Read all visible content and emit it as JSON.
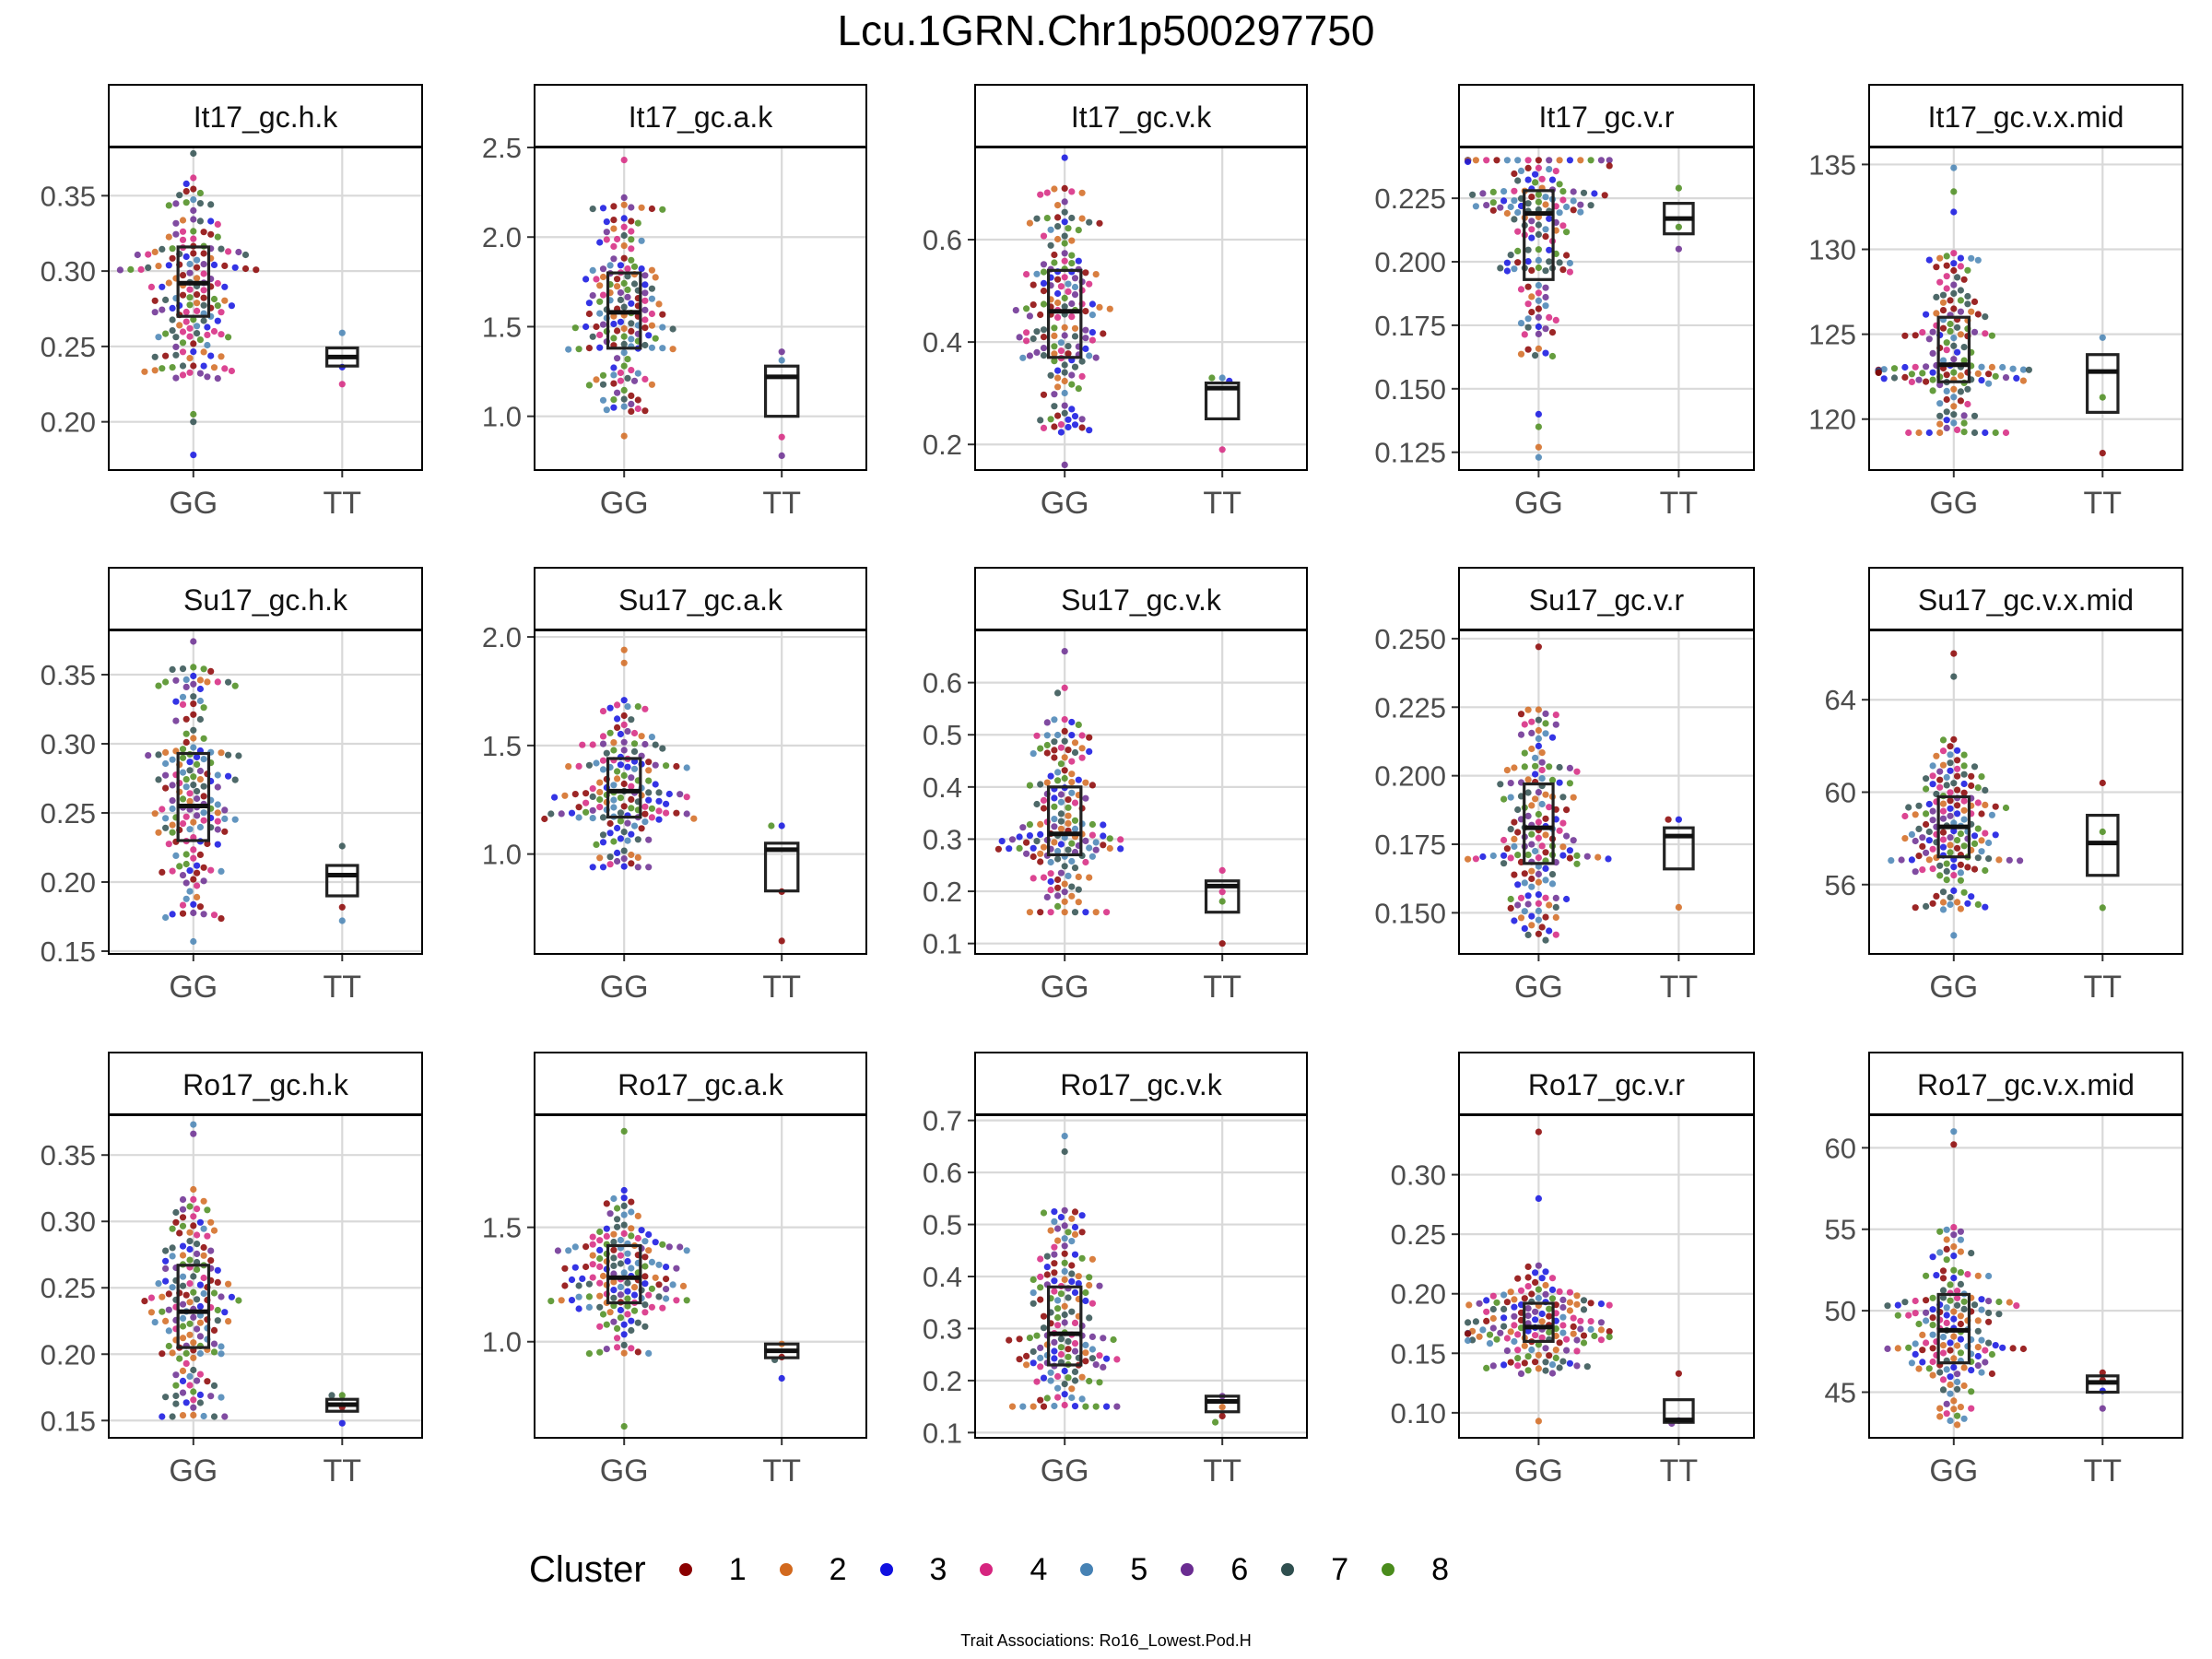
{
  "title": "Lcu.1GRN.Chr1p500297750",
  "caption": "Trait Associations: Ro16_Lowest.Pod.H",
  "legend": {
    "title": "Cluster",
    "items": [
      {
        "label": "1",
        "color": "#8B0000"
      },
      {
        "label": "2",
        "color": "#D2691E"
      },
      {
        "label": "3",
        "color": "#1010E0"
      },
      {
        "label": "4",
        "color": "#D6257F"
      },
      {
        "label": "5",
        "color": "#4682B4"
      },
      {
        "label": "6",
        "color": "#6A2C91"
      },
      {
        "label": "7",
        "color": "#2F4F4F"
      },
      {
        "label": "8",
        "color": "#4A8C1C"
      }
    ]
  },
  "chart_data": [
    {
      "type": "scatter",
      "title": "It17_gc.h.k",
      "categories": [
        "GG",
        "TT"
      ],
      "ylim": [
        0.168,
        0.382
      ],
      "yticks": [
        0.2,
        0.25,
        0.3,
        0.35
      ],
      "ytick_labels": [
        "0.20",
        "0.25",
        "0.30",
        "0.35"
      ],
      "groups": [
        {
          "category": "GG",
          "n": 160,
          "min": 0.178,
          "q1": 0.27,
          "median": 0.292,
          "q3": 0.316,
          "max": 0.378,
          "outliers": [
            0.178,
            0.2,
            0.205
          ]
        },
        {
          "category": "TT",
          "n": 3,
          "min": 0.225,
          "q1": 0.237,
          "median": 0.243,
          "q3": 0.249,
          "max": 0.259,
          "outliers": []
        }
      ]
    },
    {
      "type": "scatter",
      "title": "It17_gc.a.k",
      "categories": [
        "GG",
        "TT"
      ],
      "ylim": [
        0.7,
        2.5
      ],
      "yticks": [
        1.0,
        1.5,
        2.0,
        2.5
      ],
      "ytick_labels": [
        "1.0",
        "1.5",
        "2.0",
        "2.5"
      ],
      "groups": [
        {
          "category": "GG",
          "n": 160,
          "min": 0.89,
          "q1": 1.38,
          "median": 1.58,
          "q3": 1.8,
          "max": 2.43,
          "outliers": [
            2.43,
            2.22
          ]
        },
        {
          "category": "TT",
          "n": 4,
          "min": 0.78,
          "q1": 1.0,
          "median": 1.22,
          "q3": 1.28,
          "max": 1.36,
          "outliers": [
            0.78
          ]
        }
      ]
    },
    {
      "type": "scatter",
      "title": "It17_gc.v.k",
      "categories": [
        "GG",
        "TT"
      ],
      "ylim": [
        0.15,
        0.78
      ],
      "yticks": [
        0.2,
        0.4,
        0.6
      ],
      "ytick_labels": [
        "0.2",
        "0.4",
        "0.6"
      ],
      "groups": [
        {
          "category": "GG",
          "n": 160,
          "min": 0.16,
          "q1": 0.37,
          "median": 0.46,
          "q3": 0.54,
          "max": 0.76,
          "outliers": [
            0.76,
            0.7
          ]
        },
        {
          "category": "TT",
          "n": 4,
          "min": 0.19,
          "q1": 0.25,
          "median": 0.31,
          "q3": 0.32,
          "max": 0.33,
          "outliers": [
            0.19
          ]
        }
      ]
    },
    {
      "type": "scatter",
      "title": "It17_gc.v.r",
      "categories": [
        "GG",
        "TT"
      ],
      "ylim": [
        0.118,
        0.245
      ],
      "yticks": [
        0.125,
        0.15,
        0.175,
        0.2,
        0.225
      ],
      "ytick_labels": [
        "0.125",
        "0.150",
        "0.175",
        "0.200",
        "0.225"
      ],
      "groups": [
        {
          "category": "GG",
          "n": 160,
          "min": 0.123,
          "q1": 0.193,
          "median": 0.219,
          "q3": 0.228,
          "max": 0.24,
          "outliers": [
            0.123,
            0.127,
            0.135,
            0.14
          ]
        },
        {
          "category": "TT",
          "n": 3,
          "min": 0.205,
          "q1": 0.211,
          "median": 0.217,
          "q3": 0.223,
          "max": 0.229,
          "outliers": []
        }
      ]
    },
    {
      "type": "scatter",
      "title": "It17_gc.v.x.mid",
      "categories": [
        "GG",
        "TT"
      ],
      "ylim": [
        117.0,
        136.0
      ],
      "yticks": [
        120,
        125,
        130,
        135
      ],
      "ytick_labels": [
        "120",
        "125",
        "130",
        "135"
      ],
      "groups": [
        {
          "category": "GG",
          "n": 160,
          "min": 119.2,
          "q1": 122.2,
          "median": 123.2,
          "q3": 126.0,
          "max": 134.8,
          "outliers": [
            134.8,
            133.4,
            132.2
          ]
        },
        {
          "category": "TT",
          "n": 3,
          "min": 118.0,
          "q1": 120.4,
          "median": 122.8,
          "q3": 123.8,
          "max": 124.8,
          "outliers": [
            118.0
          ]
        }
      ]
    },
    {
      "type": "scatter",
      "title": "Su17_gc.h.k",
      "categories": [
        "GG",
        "TT"
      ],
      "ylim": [
        0.148,
        0.382
      ],
      "yticks": [
        0.15,
        0.2,
        0.25,
        0.3,
        0.35
      ],
      "ytick_labels": [
        "0.15",
        "0.20",
        "0.25",
        "0.30",
        "0.35"
      ],
      "groups": [
        {
          "category": "GG",
          "n": 160,
          "min": 0.157,
          "q1": 0.23,
          "median": 0.255,
          "q3": 0.293,
          "max": 0.374,
          "outliers": [
            0.157,
            0.374
          ]
        },
        {
          "category": "TT",
          "n": 3,
          "min": 0.172,
          "q1": 0.19,
          "median": 0.205,
          "q3": 0.212,
          "max": 0.226,
          "outliers": [
            0.172
          ]
        }
      ]
    },
    {
      "type": "scatter",
      "title": "Su17_gc.a.k",
      "categories": [
        "GG",
        "TT"
      ],
      "ylim": [
        0.54,
        2.03
      ],
      "yticks": [
        1.0,
        1.5,
        2.0
      ],
      "ytick_labels": [
        "1.0",
        "1.5",
        "2.0"
      ],
      "groups": [
        {
          "category": "GG",
          "n": 160,
          "min": 0.94,
          "q1": 1.17,
          "median": 1.29,
          "q3": 1.44,
          "max": 1.94,
          "outliers": [
            1.94,
            1.88
          ]
        },
        {
          "category": "TT",
          "n": 4,
          "min": 0.6,
          "q1": 0.83,
          "median": 1.02,
          "q3": 1.05,
          "max": 1.13,
          "outliers": [
            0.6
          ]
        }
      ]
    },
    {
      "type": "scatter",
      "title": "Su17_gc.v.k",
      "categories": [
        "GG",
        "TT"
      ],
      "ylim": [
        0.08,
        0.7
      ],
      "yticks": [
        0.1,
        0.2,
        0.3,
        0.4,
        0.5,
        0.6
      ],
      "ytick_labels": [
        "0.1",
        "0.2",
        "0.3",
        "0.4",
        "0.5",
        "0.6"
      ],
      "groups": [
        {
          "category": "GG",
          "n": 160,
          "min": 0.16,
          "q1": 0.27,
          "median": 0.31,
          "q3": 0.4,
          "max": 0.66,
          "outliers": [
            0.66,
            0.59,
            0.58
          ]
        },
        {
          "category": "TT",
          "n": 4,
          "min": 0.1,
          "q1": 0.16,
          "median": 0.21,
          "q3": 0.22,
          "max": 0.24,
          "outliers": [
            0.1
          ]
        }
      ]
    },
    {
      "type": "scatter",
      "title": "Su17_gc.v.r",
      "categories": [
        "GG",
        "TT"
      ],
      "ylim": [
        0.135,
        0.253
      ],
      "yticks": [
        0.15,
        0.175,
        0.2,
        0.225,
        0.25
      ],
      "ytick_labels": [
        "0.150",
        "0.175",
        "0.200",
        "0.225",
        "0.250"
      ],
      "groups": [
        {
          "category": "GG",
          "n": 160,
          "min": 0.14,
          "q1": 0.168,
          "median": 0.181,
          "q3": 0.197,
          "max": 0.247,
          "outliers": [
            0.247
          ]
        },
        {
          "category": "TT",
          "n": 3,
          "min": 0.152,
          "q1": 0.166,
          "median": 0.178,
          "q3": 0.181,
          "max": 0.184,
          "outliers": [
            0.152
          ]
        }
      ]
    },
    {
      "type": "scatter",
      "title": "Su17_gc.v.x.mid",
      "categories": [
        "GG",
        "TT"
      ],
      "ylim": [
        53.0,
        67.0
      ],
      "yticks": [
        56,
        60,
        64
      ],
      "ytick_labels": [
        "56",
        "60",
        "64"
      ],
      "groups": [
        {
          "category": "GG",
          "n": 160,
          "min": 53.8,
          "q1": 57.2,
          "median": 58.5,
          "q3": 59.8,
          "max": 66.0,
          "outliers": [
            66.0,
            65.0
          ]
        },
        {
          "category": "TT",
          "n": 3,
          "min": 55.0,
          "q1": 56.4,
          "median": 57.8,
          "q3": 59.0,
          "max": 60.4,
          "outliers": [
            55.0
          ]
        }
      ]
    },
    {
      "type": "scatter",
      "title": "Ro17_gc.h.k",
      "categories": [
        "GG",
        "TT"
      ],
      "ylim": [
        0.137,
        0.38
      ],
      "yticks": [
        0.15,
        0.2,
        0.25,
        0.3,
        0.35
      ],
      "ytick_labels": [
        "0.15",
        "0.20",
        "0.25",
        "0.30",
        "0.35"
      ],
      "groups": [
        {
          "category": "GG",
          "n": 160,
          "min": 0.153,
          "q1": 0.205,
          "median": 0.232,
          "q3": 0.267,
          "max": 0.373,
          "outliers": [
            0.373,
            0.366,
            0.153
          ]
        },
        {
          "category": "TT",
          "n": 4,
          "min": 0.148,
          "q1": 0.157,
          "median": 0.162,
          "q3": 0.166,
          "max": 0.169,
          "outliers": [
            0.148
          ]
        }
      ]
    },
    {
      "type": "scatter",
      "title": "Ro17_gc.a.k",
      "categories": [
        "GG",
        "TT"
      ],
      "ylim": [
        0.58,
        1.99
      ],
      "yticks": [
        1.0,
        1.5
      ],
      "ytick_labels": [
        "1.0",
        "1.5"
      ],
      "groups": [
        {
          "category": "GG",
          "n": 160,
          "min": 0.63,
          "q1": 1.17,
          "median": 1.28,
          "q3": 1.42,
          "max": 1.92,
          "outliers": [
            0.63,
            1.92
          ]
        },
        {
          "category": "TT",
          "n": 4,
          "min": 0.84,
          "q1": 0.93,
          "median": 0.96,
          "q3": 0.99,
          "max": 0.99,
          "outliers": [
            0.84
          ]
        }
      ]
    },
    {
      "type": "scatter",
      "title": "Ro17_gc.v.k",
      "categories": [
        "GG",
        "TT"
      ],
      "ylim": [
        0.09,
        0.71
      ],
      "yticks": [
        0.1,
        0.2,
        0.3,
        0.4,
        0.5,
        0.6,
        0.7
      ],
      "ytick_labels": [
        "0.1",
        "0.2",
        "0.3",
        "0.4",
        "0.5",
        "0.6",
        "0.7"
      ],
      "groups": [
        {
          "category": "GG",
          "n": 160,
          "min": 0.15,
          "q1": 0.23,
          "median": 0.29,
          "q3": 0.38,
          "max": 0.67,
          "outliers": [
            0.67,
            0.64
          ]
        },
        {
          "category": "TT",
          "n": 4,
          "min": 0.12,
          "q1": 0.14,
          "median": 0.16,
          "q3": 0.17,
          "max": 0.17,
          "outliers": [
            0.12
          ]
        }
      ]
    },
    {
      "type": "scatter",
      "title": "Ro17_gc.v.r",
      "categories": [
        "GG",
        "TT"
      ],
      "ylim": [
        0.079,
        0.35
      ],
      "yticks": [
        0.1,
        0.15,
        0.2,
        0.25,
        0.3
      ],
      "ytick_labels": [
        "0.10",
        "0.15",
        "0.20",
        "0.25",
        "0.30"
      ],
      "groups": [
        {
          "category": "GG",
          "n": 160,
          "min": 0.093,
          "q1": 0.16,
          "median": 0.172,
          "q3": 0.192,
          "max": 0.336,
          "outliers": [
            0.336,
            0.28
          ]
        },
        {
          "category": "TT",
          "n": 3,
          "min": 0.091,
          "q1": 0.092,
          "median": 0.094,
          "q3": 0.111,
          "max": 0.133,
          "outliers": [
            0.133
          ]
        }
      ]
    },
    {
      "type": "scatter",
      "title": "Ro17_gc.v.x.mid",
      "categories": [
        "GG",
        "TT"
      ],
      "ylim": [
        42.2,
        62.0
      ],
      "yticks": [
        45,
        50,
        55,
        60
      ],
      "ytick_labels": [
        "45",
        "50",
        "55",
        "60"
      ],
      "groups": [
        {
          "category": "GG",
          "n": 160,
          "min": 43.0,
          "q1": 46.8,
          "median": 48.8,
          "q3": 51.0,
          "max": 61.0,
          "outliers": [
            61.0,
            60.2
          ]
        },
        {
          "category": "TT",
          "n": 4,
          "min": 44.0,
          "q1": 45.0,
          "median": 45.6,
          "q3": 46.0,
          "max": 46.2,
          "outliers": [
            44.0
          ]
        }
      ]
    }
  ]
}
